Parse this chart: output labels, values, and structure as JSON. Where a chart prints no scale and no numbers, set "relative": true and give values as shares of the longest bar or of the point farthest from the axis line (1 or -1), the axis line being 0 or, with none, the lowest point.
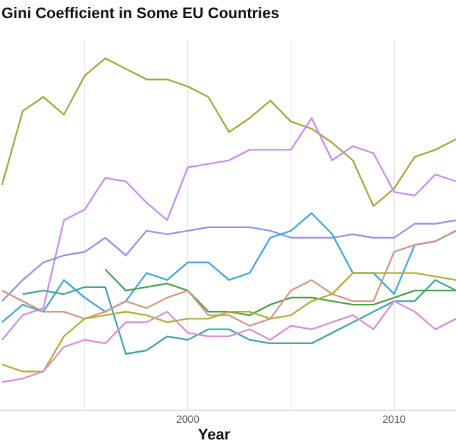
{
  "chart_data": {
    "type": "line",
    "title": "Gini Coefficient in Some EU Countries",
    "xlabel": "Year",
    "relative": true,
    "grid": "x",
    "line_style": "solid",
    "marker": "none",
    "x": [
      1991,
      1992,
      1993,
      1994,
      1995,
      1996,
      1997,
      1998,
      1999,
      2000,
      2001,
      2002,
      2003,
      2004,
      2005,
      2006,
      2007,
      2008,
      2009,
      2010,
      2011,
      2012,
      2013
    ],
    "xlim": [
      1990.9,
      2013.0
    ],
    "xticks": [
      {
        "value": 1995,
        "label": null
      },
      2000,
      {
        "value": 2005,
        "label": null
      },
      2010
    ],
    "series": [
      {
        "color": "#a8a43a",
        "values": [
          0.64,
          0.85,
          0.89,
          0.84,
          0.95,
          1,
          0.97,
          0.94,
          0.94,
          0.92,
          0.89,
          0.79,
          0.83,
          0.88,
          0.82,
          0.8,
          0.76,
          0.71,
          0.58,
          0.63,
          0.72,
          0.74,
          0.77
        ]
      },
      {
        "color": "#c98cf0",
        "values": [
          0.2,
          0.27,
          0.29,
          0.54,
          0.57,
          0.66,
          0.65,
          0.59,
          0.54,
          0.69,
          0.7,
          0.71,
          0.74,
          0.74,
          0.74,
          0.83,
          0.71,
          0.75,
          0.73,
          0.62,
          0.61,
          0.67,
          0.65
        ]
      },
      {
        "color": "#8f95f0",
        "values": [
          0.31,
          0.37,
          0.42,
          0.44,
          0.45,
          0.49,
          0.44,
          0.51,
          0.5,
          0.51,
          0.52,
          0.52,
          0.52,
          0.51,
          0.49,
          0.49,
          0.49,
          0.5,
          0.49,
          0.49,
          0.53,
          0.53,
          0.54
        ]
      },
      {
        "color": "#3fa7e0",
        "values": [
          0.25,
          0.3,
          0.28,
          0.37,
          0.32,
          0.28,
          0.31,
          0.39,
          0.37,
          0.42,
          0.42,
          0.37,
          0.39,
          0.49,
          0.51,
          0.56,
          0.5,
          0.39,
          0.39,
          0.33,
          0.47,
          0.48,
          0.51
        ]
      },
      {
        "color": "#3ea5a8",
        "values": [
          null,
          0.33,
          0.34,
          0.33,
          0.35,
          0.35,
          0.16,
          0.17,
          0.21,
          0.2,
          0.23,
          0.23,
          0.2,
          0.19,
          0.19,
          0.19,
          0.22,
          0.25,
          0.28,
          0.31,
          0.31,
          0.37,
          0.34
        ]
      },
      {
        "color": "#4d9e4a",
        "values": [
          null,
          null,
          null,
          null,
          null,
          0.4,
          0.34,
          0.35,
          0.36,
          0.34,
          0.28,
          0.28,
          0.27,
          0.3,
          0.32,
          0.32,
          0.31,
          0.3,
          0.3,
          0.32,
          0.34,
          0.34,
          0.34
        ]
      },
      {
        "color": "#d89580",
        "values": [
          0.34,
          0.31,
          0.28,
          0.28,
          0.26,
          0.28,
          0.31,
          0.29,
          0.32,
          0.34,
          0.27,
          0.27,
          0.24,
          0.26,
          0.34,
          0.37,
          0.33,
          0.31,
          0.31,
          0.45,
          0.47,
          0.48,
          0.51
        ]
      },
      {
        "color": "#b0b030",
        "values": [
          0.13,
          0.11,
          0.11,
          0.21,
          0.26,
          0.27,
          0.28,
          0.27,
          0.25,
          0.26,
          0.26,
          0.28,
          0.28,
          0.26,
          0.27,
          0.31,
          0.33,
          0.39,
          0.39,
          0.39,
          0.39,
          0.38,
          0.37
        ]
      },
      {
        "color": "#d98fd8",
        "values": [
          0.08,
          0.09,
          0.11,
          0.18,
          0.2,
          0.19,
          0.25,
          0.25,
          0.28,
          0.22,
          0.21,
          0.21,
          0.23,
          0.2,
          0.24,
          0.23,
          0.25,
          0.27,
          0.23,
          0.31,
          0.28,
          0.23,
          0.26
        ]
      }
    ]
  }
}
